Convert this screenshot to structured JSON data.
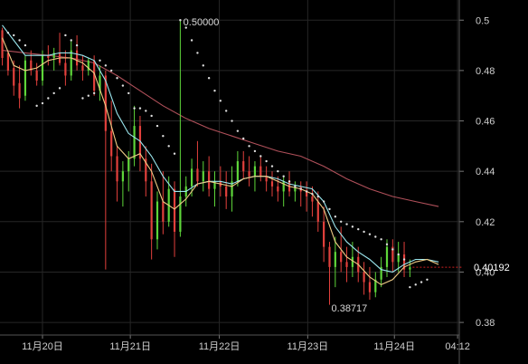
{
  "chart_data": {
    "type": "candlestick",
    "ylim": [
      0.375,
      0.508
    ],
    "xlim": [
      -0.4,
      79.6
    ],
    "grid": true,
    "y_ticks": [
      0.5,
      0.48,
      0.46,
      0.44,
      0.42,
      0.4,
      0.38
    ],
    "y_tick_labels": [
      "0.5",
      "0.48",
      "0.46",
      "0.44",
      "0.42",
      "0.40",
      "0.38"
    ],
    "x_ticks": [
      {
        "x": 7,
        "label": "11月20日"
      },
      {
        "x": 22.3,
        "label": "11月21日"
      },
      {
        "x": 37.8,
        "label": "11月22日"
      },
      {
        "x": 53.2,
        "label": "11月23日"
      },
      {
        "x": 68.3,
        "label": "11月24日"
      },
      {
        "x": 79.3,
        "label": "04:12"
      }
    ],
    "annotations": [
      {
        "label": "0.50000",
        "x": 31.2,
        "y": 0.4998,
        "kind": "high"
      },
      {
        "label": "0.38717",
        "x": 63.9,
        "y": 0.3872,
        "kind": "low"
      }
    ],
    "last_price": {
      "label": "0.40192",
      "value": 0.40192
    },
    "colors": {
      "up": "#5ed63a",
      "down": "#e2403c",
      "ma_fast": "#f0cc86",
      "ma_mid": "#9be7ef",
      "ma_slow": "#b0505a",
      "sar": "#dddddd",
      "grid": "#262626",
      "axis_text": "#cfcfcf",
      "last_price_line": "#d02020"
    },
    "candles": [
      [
        0.496,
        0.497,
        0.482,
        0.485
      ],
      [
        0.487,
        0.488,
        0.478,
        0.48
      ],
      [
        0.481,
        0.484,
        0.47,
        0.474
      ],
      [
        0.475,
        0.482,
        0.465,
        0.469
      ],
      [
        0.47,
        0.486,
        0.468,
        0.484
      ],
      [
        0.484,
        0.488,
        0.478,
        0.48
      ],
      [
        0.48,
        0.483,
        0.474,
        0.476
      ],
      [
        0.476,
        0.488,
        0.474,
        0.486
      ],
      [
        0.486,
        0.49,
        0.482,
        0.485
      ],
      [
        0.485,
        0.489,
        0.48,
        0.487
      ],
      [
        0.487,
        0.495,
        0.482,
        0.483
      ],
      [
        0.483,
        0.488,
        0.474,
        0.478
      ],
      [
        0.478,
        0.492,
        0.476,
        0.488
      ],
      [
        0.488,
        0.494,
        0.48,
        0.482
      ],
      [
        0.482,
        0.486,
        0.476,
        0.48
      ],
      [
        0.48,
        0.485,
        0.478,
        0.484
      ],
      [
        0.484,
        0.486,
        0.47,
        0.472
      ],
      [
        0.472,
        0.482,
        0.468,
        0.478
      ],
      [
        0.478,
        0.48,
        0.401,
        0.456
      ],
      [
        0.456,
        0.468,
        0.44,
        0.446
      ],
      [
        0.446,
        0.45,
        0.428,
        0.436
      ],
      [
        0.436,
        0.444,
        0.426,
        0.44
      ],
      [
        0.44,
        0.448,
        0.432,
        0.445
      ],
      [
        0.445,
        0.466,
        0.442,
        0.458
      ],
      [
        0.458,
        0.462,
        0.44,
        0.445
      ],
      [
        0.445,
        0.45,
        0.43,
        0.436
      ],
      [
        0.436,
        0.443,
        0.405,
        0.413
      ],
      [
        0.413,
        0.432,
        0.409,
        0.428
      ],
      [
        0.428,
        0.44,
        0.415,
        0.42
      ],
      [
        0.42,
        0.438,
        0.418,
        0.433
      ],
      [
        0.433,
        0.436,
        0.406,
        0.416
      ],
      [
        0.416,
        0.5,
        0.414,
        0.43
      ],
      [
        0.43,
        0.438,
        0.426,
        0.434
      ],
      [
        0.434,
        0.445,
        0.43,
        0.441
      ],
      [
        0.441,
        0.452,
        0.434,
        0.436
      ],
      [
        0.436,
        0.444,
        0.432,
        0.44
      ],
      [
        0.44,
        0.446,
        0.43,
        0.433
      ],
      [
        0.433,
        0.44,
        0.426,
        0.436
      ],
      [
        0.436,
        0.442,
        0.43,
        0.434
      ],
      [
        0.434,
        0.44,
        0.425,
        0.43
      ],
      [
        0.43,
        0.442,
        0.424,
        0.436
      ],
      [
        0.436,
        0.448,
        0.434,
        0.444
      ],
      [
        0.444,
        0.448,
        0.437,
        0.44
      ],
      [
        0.44,
        0.446,
        0.434,
        0.438
      ],
      [
        0.438,
        0.444,
        0.432,
        0.442
      ],
      [
        0.442,
        0.446,
        0.436,
        0.438
      ],
      [
        0.438,
        0.442,
        0.432,
        0.436
      ],
      [
        0.436,
        0.44,
        0.43,
        0.434
      ],
      [
        0.434,
        0.438,
        0.428,
        0.432
      ],
      [
        0.432,
        0.438,
        0.426,
        0.436
      ],
      [
        0.436,
        0.44,
        0.43,
        0.432
      ],
      [
        0.432,
        0.436,
        0.428,
        0.434
      ],
      [
        0.434,
        0.436,
        0.426,
        0.432
      ],
      [
        0.432,
        0.436,
        0.424,
        0.43
      ],
      [
        0.43,
        0.434,
        0.422,
        0.428
      ],
      [
        0.428,
        0.432,
        0.416,
        0.42
      ],
      [
        0.42,
        0.426,
        0.404,
        0.41
      ],
      [
        0.41,
        0.412,
        0.387,
        0.402
      ],
      [
        0.402,
        0.414,
        0.394,
        0.408
      ],
      [
        0.408,
        0.418,
        0.4,
        0.404
      ],
      [
        0.404,
        0.41,
        0.396,
        0.402
      ],
      [
        0.402,
        0.412,
        0.398,
        0.406
      ],
      [
        0.406,
        0.41,
        0.396,
        0.4
      ],
      [
        0.4,
        0.404,
        0.391,
        0.396
      ],
      [
        0.396,
        0.402,
        0.389,
        0.392
      ],
      [
        0.392,
        0.4,
        0.39,
        0.397
      ],
      [
        0.397,
        0.406,
        0.394,
        0.402
      ],
      [
        0.402,
        0.413,
        0.398,
        0.41
      ],
      [
        0.41,
        0.413,
        0.4,
        0.404
      ],
      [
        0.404,
        0.412,
        0.4,
        0.407
      ],
      [
        0.407,
        0.412,
        0.398,
        0.401
      ],
      [
        0.401,
        0.405,
        0.398,
        0.4019
      ]
    ],
    "ma_fast": [
      [
        0,
        0.493
      ],
      [
        2,
        0.482
      ],
      [
        4,
        0.48
      ],
      [
        6,
        0.481
      ],
      [
        8,
        0.484
      ],
      [
        10,
        0.485
      ],
      [
        12,
        0.485
      ],
      [
        14,
        0.483
      ],
      [
        16,
        0.479
      ],
      [
        18,
        0.466
      ],
      [
        20,
        0.45
      ],
      [
        22,
        0.445
      ],
      [
        24,
        0.447
      ],
      [
        26,
        0.44
      ],
      [
        28,
        0.428
      ],
      [
        30,
        0.425
      ],
      [
        32,
        0.429
      ],
      [
        34,
        0.435
      ],
      [
        36,
        0.436
      ],
      [
        38,
        0.435
      ],
      [
        40,
        0.434
      ],
      [
        42,
        0.437
      ],
      [
        44,
        0.438
      ],
      [
        46,
        0.438
      ],
      [
        48,
        0.436
      ],
      [
        50,
        0.434
      ],
      [
        52,
        0.433
      ],
      [
        54,
        0.431
      ],
      [
        56,
        0.425
      ],
      [
        58,
        0.412
      ],
      [
        60,
        0.406
      ],
      [
        62,
        0.403
      ],
      [
        64,
        0.398
      ],
      [
        66,
        0.395
      ],
      [
        68,
        0.397
      ],
      [
        70,
        0.402
      ],
      [
        72,
        0.404
      ],
      [
        74,
        0.405
      ],
      [
        76,
        0.403
      ]
    ],
    "ma_mid": [
      [
        0,
        0.498
      ],
      [
        2,
        0.492
      ],
      [
        4,
        0.486
      ],
      [
        6,
        0.486
      ],
      [
        8,
        0.486
      ],
      [
        10,
        0.487
      ],
      [
        12,
        0.487
      ],
      [
        14,
        0.486
      ],
      [
        16,
        0.484
      ],
      [
        18,
        0.476
      ],
      [
        20,
        0.463
      ],
      [
        22,
        0.455
      ],
      [
        24,
        0.452
      ],
      [
        26,
        0.446
      ],
      [
        28,
        0.438
      ],
      [
        30,
        0.432
      ],
      [
        32,
        0.432
      ],
      [
        34,
        0.435
      ],
      [
        36,
        0.436
      ],
      [
        38,
        0.436
      ],
      [
        40,
        0.435
      ],
      [
        42,
        0.437
      ],
      [
        44,
        0.438
      ],
      [
        46,
        0.438
      ],
      [
        48,
        0.437
      ],
      [
        50,
        0.435
      ],
      [
        52,
        0.434
      ],
      [
        54,
        0.433
      ],
      [
        56,
        0.428
      ],
      [
        58,
        0.418
      ],
      [
        60,
        0.412
      ],
      [
        62,
        0.408
      ],
      [
        64,
        0.405
      ],
      [
        66,
        0.401
      ],
      [
        68,
        0.4
      ],
      [
        70,
        0.403
      ],
      [
        72,
        0.405
      ],
      [
        74,
        0.405
      ],
      [
        76,
        0.404
      ]
    ],
    "ma_slow": [
      [
        0,
        0.488
      ],
      [
        4,
        0.487
      ],
      [
        8,
        0.486
      ],
      [
        12,
        0.485
      ],
      [
        16,
        0.483
      ],
      [
        20,
        0.478
      ],
      [
        24,
        0.472
      ],
      [
        28,
        0.466
      ],
      [
        32,
        0.461
      ],
      [
        36,
        0.457
      ],
      [
        40,
        0.454
      ],
      [
        44,
        0.451
      ],
      [
        48,
        0.448
      ],
      [
        52,
        0.446
      ],
      [
        56,
        0.442
      ],
      [
        60,
        0.437
      ],
      [
        64,
        0.433
      ],
      [
        68,
        0.43
      ],
      [
        72,
        0.428
      ],
      [
        76,
        0.426
      ]
    ],
    "sar": [
      [
        1,
        0.495
      ],
      [
        2,
        0.494
      ],
      [
        3,
        0.492
      ],
      [
        4,
        0.49
      ],
      [
        6,
        0.466
      ],
      [
        7,
        0.467
      ],
      [
        8,
        0.469
      ],
      [
        9,
        0.471
      ],
      [
        10,
        0.473
      ],
      [
        11,
        0.494
      ],
      [
        12,
        0.492
      ],
      [
        13,
        0.49
      ],
      [
        14,
        0.469
      ],
      [
        15,
        0.47
      ],
      [
        16,
        0.471
      ],
      [
        17,
        0.484
      ],
      [
        18,
        0.482
      ],
      [
        19,
        0.48
      ],
      [
        20,
        0.477
      ],
      [
        21,
        0.474
      ],
      [
        22,
        0.471
      ],
      [
        23,
        0.465
      ],
      [
        24,
        0.465
      ],
      [
        25,
        0.464
      ],
      [
        26,
        0.462
      ],
      [
        27,
        0.458
      ],
      [
        28,
        0.454
      ],
      [
        29,
        0.45
      ],
      [
        30,
        0.447
      ],
      [
        31,
        0.5
      ],
      [
        32,
        0.497
      ],
      [
        33,
        0.492
      ],
      [
        34,
        0.487
      ],
      [
        35,
        0.482
      ],
      [
        36,
        0.477
      ],
      [
        37,
        0.472
      ],
      [
        38,
        0.468
      ],
      [
        39,
        0.464
      ],
      [
        40,
        0.46
      ],
      [
        41,
        0.456
      ],
      [
        42,
        0.453
      ],
      [
        43,
        0.45
      ],
      [
        44,
        0.448
      ],
      [
        45,
        0.446
      ],
      [
        46,
        0.444
      ],
      [
        47,
        0.442
      ],
      [
        48,
        0.44
      ],
      [
        49,
        0.438
      ],
      [
        50,
        0.436
      ],
      [
        51,
        0.434
      ],
      [
        52,
        0.433
      ],
      [
        53,
        0.432
      ],
      [
        54,
        0.431
      ],
      [
        55,
        0.43
      ],
      [
        56,
        0.428
      ],
      [
        57,
        0.425
      ],
      [
        58,
        0.422
      ],
      [
        59,
        0.42
      ],
      [
        60,
        0.419
      ],
      [
        61,
        0.418
      ],
      [
        62,
        0.417
      ],
      [
        63,
        0.416
      ],
      [
        64,
        0.415
      ],
      [
        65,
        0.414
      ],
      [
        66,
        0.413
      ],
      [
        67,
        0.411
      ],
      [
        68,
        0.409
      ],
      [
        69,
        0.407
      ],
      [
        70,
        0.405
      ],
      [
        71,
        0.394
      ],
      [
        72,
        0.395
      ],
      [
        73,
        0.396
      ],
      [
        74,
        0.397
      ]
    ]
  }
}
